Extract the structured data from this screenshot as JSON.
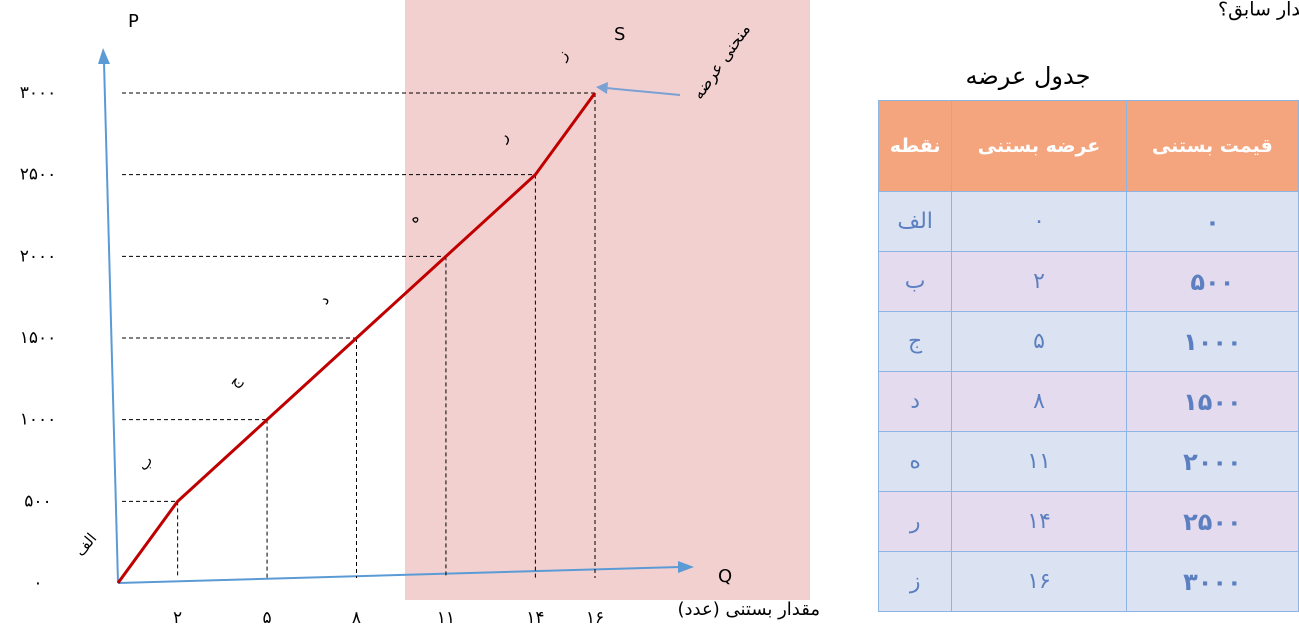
{
  "header": {
    "text": "مقدار سابق؟"
  },
  "chart_data": {
    "type": "line",
    "y_label": "P",
    "x_label": "Q",
    "curve_label": "S",
    "annotation": "منحنی عرضه",
    "x_title": "مقدار بستنی (عدد)",
    "x": [
      0,
      2,
      5,
      8,
      11,
      14,
      16
    ],
    "series": [
      {
        "name": "S",
        "color": "#c00000",
        "values": [
          0,
          500,
          1000,
          1500,
          2000,
          2500,
          3000
        ]
      }
    ],
    "point_labels": [
      "الف",
      "ب",
      "ج",
      "د",
      "ه",
      "ر",
      "ز"
    ],
    "xlim": [
      0,
      16
    ],
    "ylim": [
      0,
      3000
    ],
    "xticks": [
      {
        "value": 2,
        "label": "۲"
      },
      {
        "value": 5,
        "label": "۵"
      },
      {
        "value": 8,
        "label": "۸"
      },
      {
        "value": 11,
        "label": "۱۱"
      },
      {
        "value": 14,
        "label": "۱۴"
      },
      {
        "value": 16,
        "label": "۱۶"
      }
    ],
    "yticks": [
      {
        "value": 0,
        "label": "۰"
      },
      {
        "value": 500,
        "label": "۵۰۰"
      },
      {
        "value": 1000,
        "label": "۱۰۰۰"
      },
      {
        "value": 1500,
        "label": "۱۵۰۰"
      },
      {
        "value": 2000,
        "label": "۲۰۰۰"
      },
      {
        "value": 2500,
        "label": "۲۵۰۰"
      },
      {
        "value": 3000,
        "label": "۳۰۰۰"
      }
    ]
  },
  "table": {
    "title": "جدول عرضه",
    "header": [
      "قیمت بستنی",
      "عرضه بستنی",
      "نقطه"
    ],
    "rows": [
      [
        "۰",
        "۰",
        "الف"
      ],
      [
        "۵۰۰",
        "۲",
        "ب"
      ],
      [
        "۱۰۰۰",
        "۵",
        "ج"
      ],
      [
        "۱۵۰۰",
        "۸",
        "د"
      ],
      [
        "۲۰۰۰",
        "۱۱",
        "ه"
      ],
      [
        "۲۵۰۰",
        "۱۴",
        "ر"
      ],
      [
        "۳۰۰۰",
        "۱۶",
        "ز"
      ]
    ]
  }
}
